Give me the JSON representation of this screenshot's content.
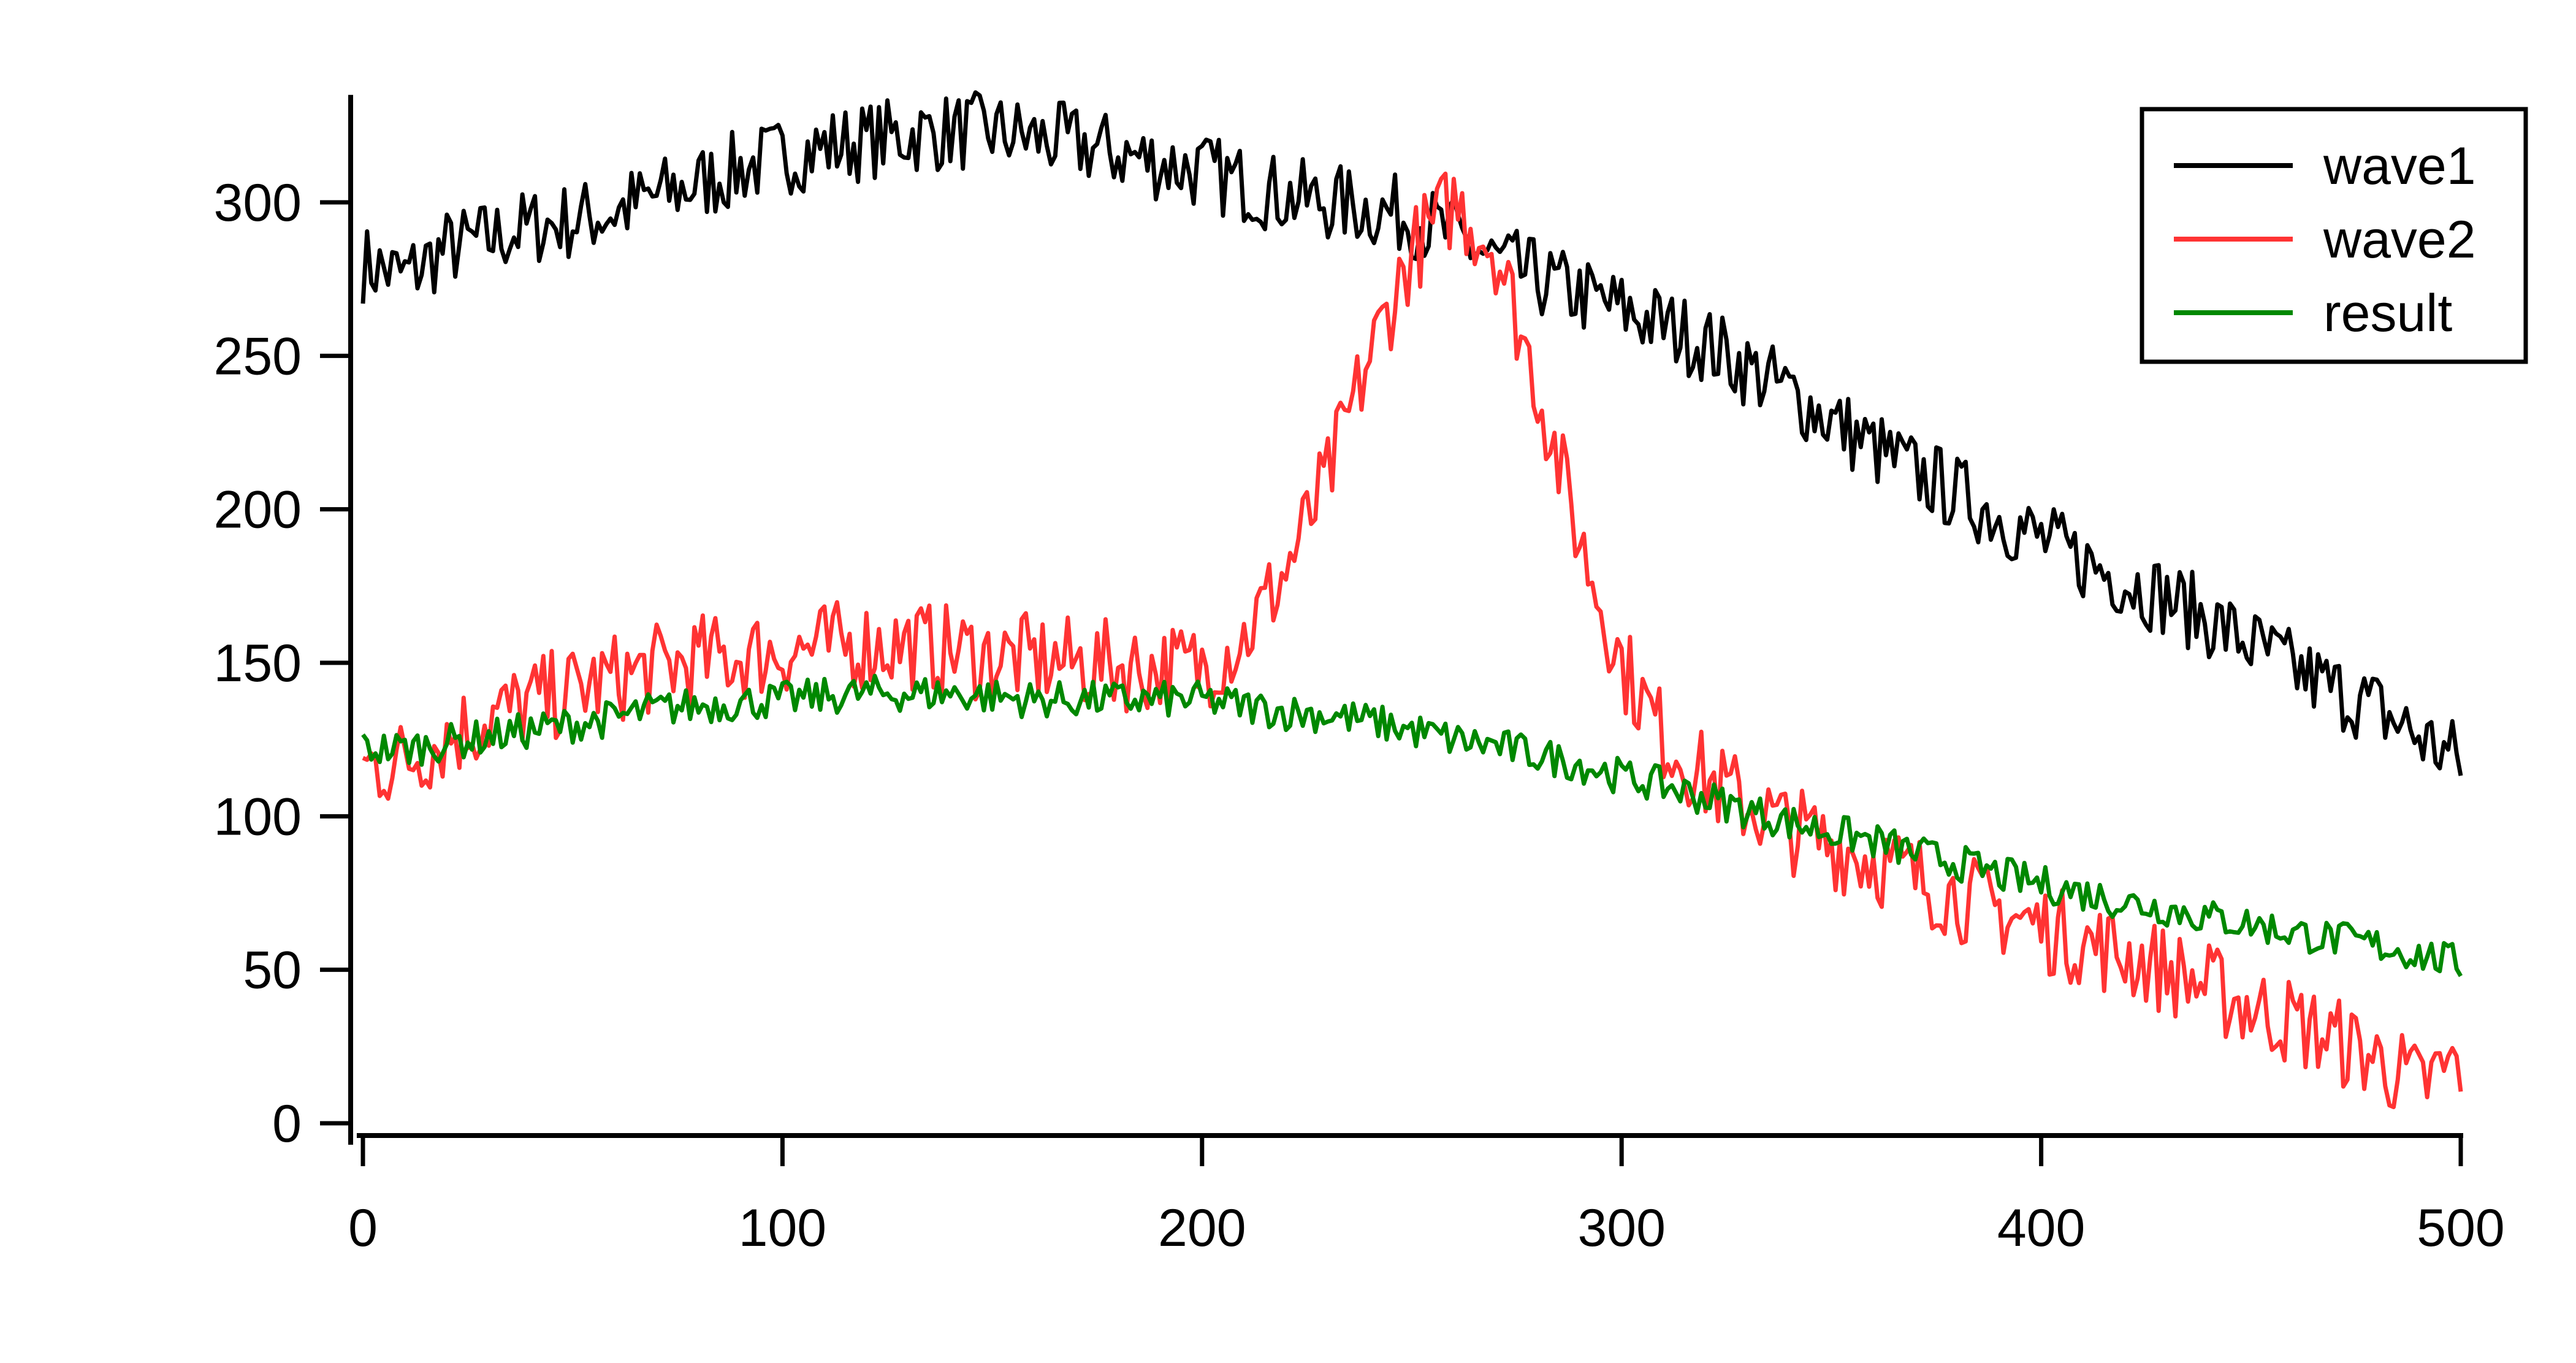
{
  "chart_data": {
    "type": "line",
    "title": "",
    "xlabel": "",
    "ylabel": "",
    "xlim": [
      0,
      500
    ],
    "ylim": [
      -5,
      335
    ],
    "x_ticks": [
      0,
      100,
      200,
      300,
      400,
      500
    ],
    "y_ticks": [
      0,
      50,
      100,
      150,
      200,
      250,
      300
    ],
    "x_tick_labels": [
      "0",
      "100",
      "200",
      "300",
      "400",
      "500"
    ],
    "y_tick_labels": [
      "0",
      "50",
      "100",
      "150",
      "200",
      "250",
      "300"
    ],
    "grid": false,
    "legend_position": "top-right",
    "x": [
      0,
      10,
      20,
      30,
      40,
      50,
      60,
      70,
      80,
      90,
      100,
      110,
      120,
      130,
      140,
      150,
      160,
      170,
      180,
      190,
      200,
      210,
      220,
      230,
      240,
      250,
      260,
      270,
      280,
      290,
      300,
      310,
      320,
      330,
      340,
      350,
      360,
      370,
      380,
      390,
      400,
      410,
      420,
      430,
      440,
      450,
      460,
      470,
      480,
      490,
      500
    ],
    "series": [
      {
        "name": "wave1",
        "color": "#000000",
        "values": [
          280,
          276,
          285,
          288,
          292,
          294,
          297,
          302,
          306,
          311,
          315,
          318,
          320,
          322,
          323,
          323,
          321,
          319,
          316,
          313,
          310,
          306,
          302,
          300,
          298,
          295,
          289,
          281,
          275,
          270,
          265,
          260,
          254,
          246,
          238,
          229,
          220,
          212,
          205,
          198,
          190,
          183,
          177,
          171,
          164,
          156,
          148,
          141,
          135,
          126,
          118
        ]
      },
      {
        "name": "wave2",
        "color": "#ff3333",
        "values": [
          116,
          118,
          126,
          132,
          137,
          141,
          145,
          148,
          151,
          152,
          154,
          155,
          156,
          156,
          154,
          152,
          151,
          150,
          149,
          148,
          149,
          158,
          180,
          210,
          250,
          284,
          300,
          285,
          240,
          190,
          150,
          126,
          112,
          104,
          96,
          91,
          86,
          80,
          74,
          69,
          64,
          59,
          55,
          50,
          44,
          38,
          33,
          27,
          21,
          12,
          20
        ]
      },
      {
        "name": "result",
        "color": "#008800",
        "values": [
          122,
          122,
          124,
          126,
          128,
          130,
          132,
          135,
          136,
          137,
          138,
          139,
          140,
          140,
          140,
          139,
          138,
          138,
          138,
          138,
          138,
          136,
          134,
          133,
          131,
          128,
          125,
          123,
          120,
          117,
          113,
          110,
          106,
          102,
          98,
          95,
          92,
          88,
          85,
          81,
          78,
          75,
          72,
          70,
          67,
          65,
          62,
          60,
          58,
          55,
          52
        ]
      }
    ]
  }
}
